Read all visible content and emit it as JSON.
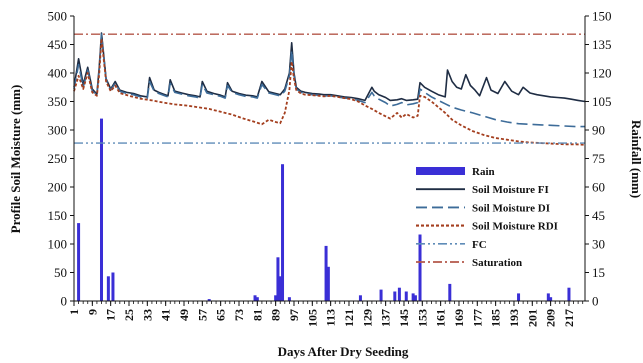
{
  "chart_data": {
    "type": "line",
    "xlabel": "Days After Dry Seeding",
    "ylabel": "Profile Soil Moisture (mm)",
    "y2label": "Rainfall (mm)",
    "xlim": [
      1,
      224
    ],
    "ylim": [
      0,
      500
    ],
    "y2lim": [
      0,
      150
    ],
    "xticks": [
      1,
      9,
      17,
      25,
      33,
      41,
      49,
      57,
      65,
      73,
      81,
      89,
      97,
      105,
      113,
      121,
      129,
      137,
      145,
      153,
      161,
      169,
      177,
      185,
      193,
      201,
      209,
      217
    ],
    "yticks": [
      0,
      50,
      100,
      150,
      200,
      250,
      300,
      350,
      400,
      450,
      500
    ],
    "y2ticks": [
      0,
      15,
      30,
      45,
      60,
      75,
      90,
      105,
      120,
      135,
      150
    ],
    "grid": false,
    "legend_position": "right-middle",
    "colors": {
      "rain": "#3a2fd6",
      "fi": "#1f2d44",
      "di": "#3d6c99",
      "rdi": "#a43f1f",
      "fc": "#5f8cb8",
      "saturation": "#b4574a",
      "axis": "#111111"
    },
    "series": [
      {
        "name": "Soil Moisture FI",
        "style": "solid",
        "x": [
          1,
          3,
          5,
          7,
          9,
          11,
          12,
          13,
          15,
          17,
          19,
          21,
          24,
          27,
          30,
          33,
          34,
          36,
          38,
          40,
          42,
          43,
          45,
          48,
          51,
          54,
          56,
          57,
          59,
          62,
          65,
          67,
          68,
          70,
          73,
          76,
          79,
          81,
          83,
          86,
          89,
          91,
          93,
          95,
          96,
          97,
          98,
          100,
          102,
          105,
          108,
          110,
          113,
          116,
          119,
          122,
          125,
          128,
          131,
          132,
          134,
          137,
          139,
          142,
          144,
          146,
          149,
          151,
          152,
          154,
          157,
          160,
          163,
          164,
          166,
          168,
          170,
          172,
          174,
          176,
          178,
          181,
          183,
          186,
          189,
          192,
          195,
          197,
          200,
          203,
          206,
          209,
          212,
          215,
          218,
          221,
          224
        ],
        "y": [
          375,
          425,
          380,
          410,
          372,
          363,
          410,
          470,
          390,
          372,
          385,
          370,
          366,
          364,
          360,
          358,
          392,
          370,
          366,
          363,
          360,
          388,
          368,
          365,
          362,
          360,
          358,
          385,
          368,
          364,
          361,
          358,
          383,
          368,
          364,
          361,
          360,
          358,
          385,
          367,
          364,
          362,
          372,
          400,
          453,
          400,
          375,
          368,
          366,
          364,
          363,
          362,
          362,
          360,
          358,
          357,
          355,
          352,
          375,
          368,
          362,
          357,
          352,
          353,
          355,
          352,
          353,
          354,
          383,
          375,
          368,
          362,
          358,
          405,
          385,
          375,
          372,
          397,
          378,
          370,
          360,
          392,
          370,
          364,
          385,
          368,
          362,
          375,
          365,
          362,
          360,
          358,
          357,
          356,
          354,
          352,
          350
        ]
      },
      {
        "name": "Soil Moisture  DI",
        "style": "long-dash",
        "x": [
          1,
          3,
          5,
          7,
          9,
          11,
          12,
          13,
          15,
          17,
          19,
          21,
          24,
          27,
          30,
          33,
          34,
          36,
          38,
          40,
          42,
          43,
          45,
          48,
          51,
          54,
          56,
          57,
          59,
          62,
          65,
          67,
          68,
          70,
          73,
          76,
          79,
          81,
          83,
          86,
          89,
          91,
          93,
          95,
          96,
          97,
          98,
          100,
          102,
          105,
          108,
          110,
          113,
          116,
          119,
          122,
          125,
          128,
          131,
          132,
          134,
          137,
          139,
          142,
          144,
          146,
          149,
          151,
          152,
          154,
          157,
          160,
          163,
          166,
          170,
          175,
          180,
          185,
          190,
          195,
          200,
          205,
          210,
          215,
          220,
          224
        ],
        "y": [
          372,
          415,
          375,
          405,
          368,
          362,
          405,
          468,
          388,
          370,
          382,
          368,
          364,
          362,
          358,
          356,
          385,
          368,
          364,
          361,
          358,
          382,
          366,
          363,
          360,
          358,
          356,
          380,
          365,
          362,
          359,
          356,
          378,
          366,
          362,
          359,
          358,
          356,
          380,
          365,
          362,
          360,
          368,
          395,
          440,
          395,
          372,
          366,
          364,
          362,
          361,
          360,
          360,
          358,
          356,
          355,
          352,
          348,
          366,
          360,
          354,
          348,
          342,
          345,
          348,
          344,
          346,
          348,
          372,
          366,
          358,
          352,
          346,
          340,
          335,
          330,
          324,
          318,
          314,
          311,
          310,
          309,
          308,
          307,
          306,
          306
        ]
      },
      {
        "name": "Soil Moisture RDI",
        "style": "dotted",
        "x": [
          1,
          3,
          5,
          7,
          9,
          11,
          12,
          13,
          15,
          17,
          19,
          21,
          25,
          30,
          35,
          40,
          45,
          50,
          55,
          60,
          65,
          70,
          75,
          80,
          83,
          86,
          89,
          91,
          93,
          95,
          96,
          97,
          98,
          100,
          102,
          105,
          108,
          110,
          113,
          116,
          119,
          122,
          125,
          128,
          131,
          134,
          137,
          139,
          142,
          144,
          146,
          149,
          151,
          152,
          154,
          157,
          160,
          163,
          166,
          170,
          175,
          180,
          185,
          190,
          195,
          200,
          205,
          210,
          215,
          220,
          224
        ],
        "y": [
          368,
          395,
          372,
          400,
          366,
          360,
          398,
          460,
          385,
          368,
          378,
          365,
          360,
          355,
          352,
          348,
          345,
          343,
          340,
          337,
          332,
          327,
          320,
          314,
          310,
          318,
          314,
          312,
          330,
          370,
          420,
          390,
          370,
          364,
          362,
          361,
          360,
          359,
          360,
          358,
          356,
          354,
          350,
          343,
          337,
          330,
          324,
          320,
          330,
          322,
          328,
          322,
          325,
          360,
          358,
          350,
          340,
          330,
          318,
          308,
          298,
          291,
          286,
          283,
          280,
          278,
          277,
          276,
          275,
          275,
          274
        ]
      },
      {
        "name": "FC",
        "style": "dash-dot-dot",
        "x": [
          1,
          224
        ],
        "y": [
          277,
          277
        ]
      },
      {
        "name": "Saturation",
        "style": "dash-dot",
        "x": [
          1,
          224
        ],
        "y": [
          468,
          468
        ]
      },
      {
        "name": "Rain",
        "type": "bar",
        "axis": "y2",
        "x": [
          3,
          13,
          16,
          18,
          60,
          80,
          81,
          89,
          90,
          91,
          92,
          95,
          111,
          112,
          126,
          135,
          141,
          143,
          146,
          149,
          150,
          152,
          165,
          195,
          208,
          209,
          217
        ],
        "values": [
          41,
          96,
          13,
          15,
          1,
          3,
          2,
          3,
          23,
          13,
          72,
          2,
          29,
          18,
          3,
          6,
          5,
          7,
          5,
          4,
          3,
          35,
          9,
          4,
          4,
          2,
          7
        ]
      }
    ]
  }
}
